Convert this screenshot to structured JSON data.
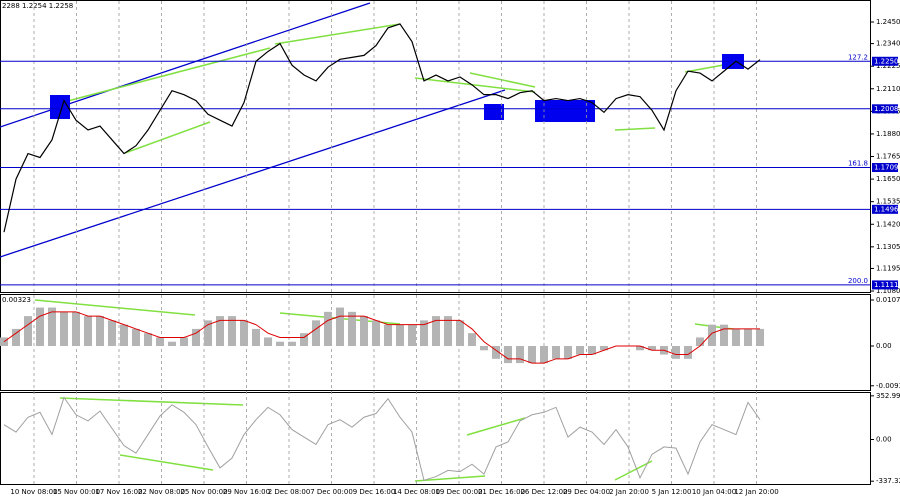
{
  "chart_data": {
    "type": "line",
    "header": "2288 1.2254 1.2258",
    "x_labels": [
      "10 Nov 08:00",
      "15 Nov 00:00",
      "17 Nov 16:00",
      "22 Nov 08:00",
      "25 Nov 00:00",
      "29 Nov 16:00",
      "2 Dec 08:00",
      "7 Dec 00:00",
      "9 Dec 16:00",
      "14 Dec 08:00",
      "19 Dec 00:00",
      "21 Dec 16:00",
      "26 Dec 12:00",
      "29 Dec 04:00",
      "2 Jan 20:00",
      "5 Jan 12:00",
      "10 Jan 04:00",
      "12 Jan 20:00"
    ],
    "price": {
      "color": "#000000",
      "values": [
        1.138,
        1.165,
        1.178,
        1.176,
        1.185,
        1.205,
        1.195,
        1.19,
        1.192,
        1.185,
        1.178,
        1.182,
        1.19,
        1.2,
        1.21,
        1.208,
        1.205,
        1.198,
        1.195,
        1.192,
        1.204,
        1.225,
        1.23,
        1.234,
        1.223,
        1.218,
        1.215,
        1.222,
        1.226,
        1.227,
        1.228,
        1.233,
        1.242,
        1.244,
        1.235,
        1.215,
        1.218,
        1.215,
        1.217,
        1.213,
        1.208,
        1.208,
        1.206,
        1.209,
        1.21,
        1.205,
        1.206,
        1.205,
        1.206,
        1.204,
        1.199,
        1.206,
        1.208,
        1.207,
        1.2,
        1.19,
        1.21,
        1.22,
        1.219,
        1.215,
        1.22,
        1.225,
        1.221,
        1.2258
      ],
      "ylim": [
        1.1075,
        1.2557
      ],
      "yticks": [
        {
          "value": 1.245,
          "label": "1.2450"
        },
        {
          "value": 1.234,
          "label": "1.2340"
        },
        1.2225,
        {
          "value": 1.211,
          "label": "1.2110"
        },
        1.1995,
        {
          "value": 1.188,
          "label": "1.1880"
        },
        1.1765,
        {
          "value": 1.165,
          "label": "1.1650"
        },
        1.1535,
        {
          "value": 1.142,
          "label": "1.1420"
        },
        1.1305,
        1.1195,
        {
          "value": 1.108,
          "label": "1.1080"
        }
      ],
      "levels": [
        {
          "value": 1.225,
          "label": "1.2250",
          "fib": "127.2"
        },
        {
          "value": 1.2008
        },
        {
          "value": 1.1709,
          "fib": "161.8"
        },
        {
          "value": 1.1496
        },
        {
          "value": 1.1111,
          "fib": "200.0"
        }
      ],
      "level_color": "#0000cc"
    },
    "macd": {
      "title": "0.00323",
      "hist_color": "#b4b4b4",
      "signal_color": "#dd0000",
      "hist": [
        0.002,
        0.004,
        0.007,
        0.009,
        0.009,
        0.008,
        0.008,
        0.007,
        0.007,
        0.006,
        0.005,
        0.004,
        0.003,
        0.002,
        0.001,
        0.002,
        0.004,
        0.006,
        0.007,
        0.007,
        0.006,
        0.004,
        0.002,
        0.001,
        0.001,
        0.003,
        0.006,
        0.008,
        0.009,
        0.008,
        0.007,
        0.006,
        0.005,
        0.005,
        0.005,
        0.006,
        0.007,
        0.007,
        0.006,
        0.003,
        -0.001,
        -0.003,
        -0.004,
        -0.004,
        -0.004,
        -0.004,
        -0.003,
        -0.003,
        -0.002,
        -0.002,
        -0.001,
        0,
        0,
        -0.001,
        -0.001,
        -0.002,
        -0.003,
        -0.003,
        0.002,
        0.005,
        0.005,
        0.004,
        0.004,
        0.004
      ],
      "signal": [
        0.001,
        0.003,
        0.005,
        0.007,
        0.008,
        0.008,
        0.008,
        0.007,
        0.007,
        0.006,
        0.005,
        0.004,
        0.003,
        0.002,
        0.002,
        0.002,
        0.003,
        0.005,
        0.006,
        0.006,
        0.006,
        0.005,
        0.003,
        0.002,
        0.002,
        0.002,
        0.004,
        0.006,
        0.007,
        0.007,
        0.007,
        0.006,
        0.005,
        0.005,
        0.005,
        0.005,
        0.006,
        0.006,
        0.006,
        0.004,
        0.001,
        -0.001,
        -0.003,
        -0.003,
        -0.004,
        -0.004,
        -0.003,
        -0.003,
        -0.002,
        -0.002,
        -0.001,
        0,
        0,
        0,
        -0.001,
        -0.001,
        -0.002,
        -0.002,
        0,
        0.003,
        0.004,
        0.004,
        0.004,
        0.004
      ],
      "ylim": [
        -0.0103,
        0.01194
      ],
      "yticks": [
        0.01077,
        {
          "value": 0,
          "label": "0.00"
        },
        -0.00931
      ]
    },
    "cci": {
      "color": "#a0a0a0",
      "values": [
        120,
        60,
        180,
        220,
        40,
        340,
        200,
        150,
        230,
        90,
        -50,
        -110,
        40,
        190,
        280,
        220,
        120,
        -60,
        -230,
        -150,
        40,
        160,
        260,
        200,
        80,
        20,
        -40,
        120,
        160,
        100,
        180,
        210,
        330,
        180,
        60,
        -330,
        -300,
        -250,
        -260,
        -200,
        -280,
        -60,
        -20,
        150,
        200,
        220,
        260,
        20,
        100,
        60,
        -40,
        80,
        -60,
        -310,
        -120,
        -60,
        -70,
        -280,
        -20,
        120,
        80,
        40,
        300,
        160
      ],
      "ylim": [
        -360,
        376
      ],
      "yticks": [
        352.9968,
        {
          "value": 0,
          "label": "0.00"
        },
        -337.326
      ]
    }
  }
}
